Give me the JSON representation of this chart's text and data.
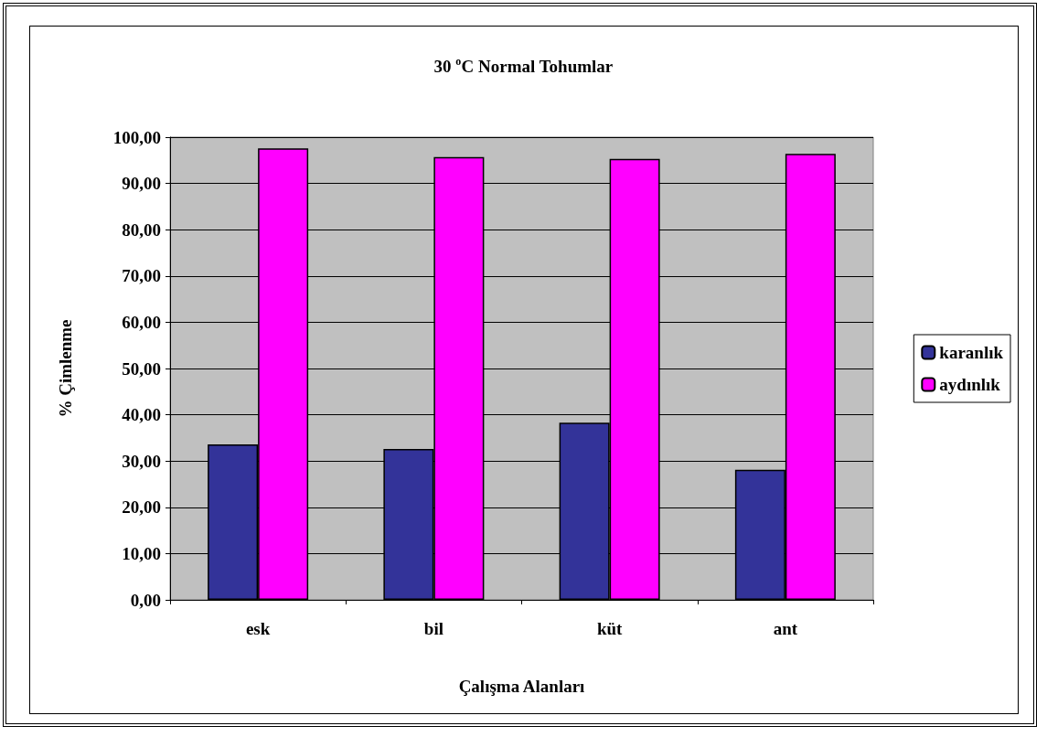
{
  "chart_data": {
    "type": "bar",
    "title": "30 $^{o}$C Normal Tohumlar",
    "xlabel": "Çalışma Alanları",
    "ylabel": "% Çimlenme",
    "categories": [
      "esk",
      "bil",
      "küt",
      "ant"
    ],
    "series": [
      {
        "name": "karanlık",
        "color": "#333399",
        "values": [
          33.6,
          32.6,
          38.3,
          28.1
        ]
      },
      {
        "name": "aydınlık",
        "color": "#ff00ff",
        "values": [
          97.6,
          95.7,
          95.3,
          96.4
        ]
      }
    ],
    "ylim": [
      0,
      100
    ],
    "yticks": [
      {
        "value": 0,
        "label": "0,00"
      },
      {
        "value": 10,
        "label": "10,00"
      },
      {
        "value": 20,
        "label": "20,00"
      },
      {
        "value": 30,
        "label": "30,00"
      },
      {
        "value": 40,
        "label": "40,00"
      },
      {
        "value": 50,
        "label": "50,00"
      },
      {
        "value": 60,
        "label": "60,00"
      },
      {
        "value": 70,
        "label": "70,00"
      },
      {
        "value": 80,
        "label": "80,00"
      },
      {
        "value": 90,
        "label": "90,00"
      },
      {
        "value": 100,
        "label": "100,00"
      }
    ],
    "grid": "y",
    "legend": "right"
  }
}
